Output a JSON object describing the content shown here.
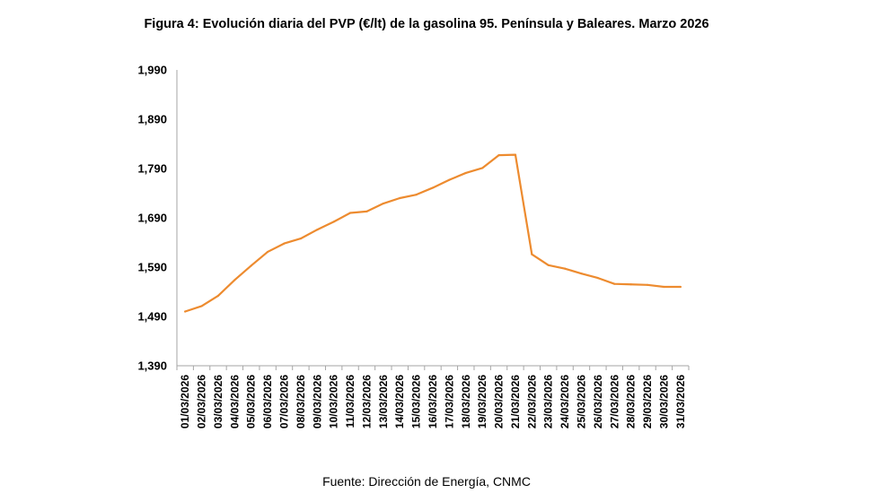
{
  "chart_data": {
    "type": "line",
    "title": "Figura 4: Evolución diaria del PVP (€/lt) de la gasolina 95. Península y Baleares. Marzo 2026",
    "xlabel": "",
    "ylabel": "",
    "source": "Fuente: Dirección de Energía, CNMC",
    "ylim": [
      1.39,
      1.99
    ],
    "y_ticks": [
      "1,390",
      "1,490",
      "1,590",
      "1,690",
      "1,790",
      "1,890",
      "1,990"
    ],
    "grid": false,
    "line_color": "#ED8B2F",
    "categories": [
      "01/03/2026",
      "02/03/2026",
      "03/03/2026",
      "04/03/2026",
      "05/03/2026",
      "06/03/2026",
      "07/03/2026",
      "08/03/2026",
      "09/03/2026",
      "10/03/2026",
      "11/03/2026",
      "12/03/2026",
      "13/03/2026",
      "14/03/2026",
      "15/03/2026",
      "16/03/2026",
      "17/03/2026",
      "18/03/2026",
      "19/03/2026",
      "20/03/2026",
      "21/03/2026",
      "22/03/2026",
      "23/03/2026",
      "24/03/2026",
      "25/03/2026",
      "26/03/2026",
      "27/03/2026",
      "28/03/2026",
      "29/03/2026",
      "30/03/2026",
      "31/03/2026"
    ],
    "values": [
      1.5,
      1.511,
      1.532,
      1.564,
      1.593,
      1.621,
      1.638,
      1.648,
      1.666,
      1.682,
      1.7,
      1.703,
      1.719,
      1.73,
      1.737,
      1.751,
      1.767,
      1.781,
      1.791,
      1.817,
      1.818,
      1.616,
      1.594,
      1.587,
      1.577,
      1.568,
      1.556,
      1.555,
      1.554,
      1.55,
      1.55
    ]
  }
}
